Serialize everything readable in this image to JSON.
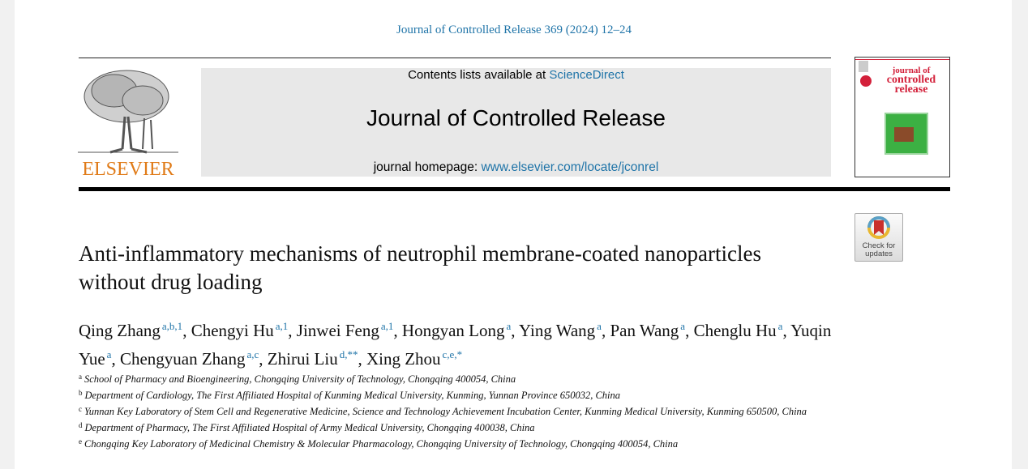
{
  "citation": "Journal of Controlled Release 369 (2024) 12–24",
  "publisher": "ELSEVIER",
  "banner": {
    "contents_prefix": "Contents lists available at ",
    "contents_link": "ScienceDirect",
    "journal": "Journal of Controlled Release",
    "homepage_prefix": "journal homepage: ",
    "homepage_link": "www.elsevier.com/locate/jconrel"
  },
  "cover": {
    "line1": "journal of",
    "line2": "controlled",
    "line3": "release"
  },
  "check_updates": {
    "line1": "Check for",
    "line2": "updates"
  },
  "title": "Anti-inflammatory mechanisms of neutrophil membrane-coated nanoparticles without drug loading",
  "authors": [
    {
      "name": "Qing Zhang",
      "sup": "a,b,1"
    },
    {
      "name": "Chengyi Hu",
      "sup": "a,1"
    },
    {
      "name": "Jinwei Feng",
      "sup": "a,1"
    },
    {
      "name": "Hongyan Long",
      "sup": "a"
    },
    {
      "name": "Ying Wang",
      "sup": "a"
    },
    {
      "name": "Pan Wang",
      "sup": "a"
    },
    {
      "name": "Chenglu Hu",
      "sup": "a"
    },
    {
      "name": "Yuqin Yue",
      "sup": "a"
    },
    {
      "name": "Chengyuan Zhang",
      "sup": "a,c"
    },
    {
      "name": "Zhirui Liu",
      "sup": "d,**"
    },
    {
      "name": "Xing Zhou",
      "sup": "c,e,*"
    }
  ],
  "affiliations": [
    {
      "key": "a",
      "text": "School of Pharmacy and Bioengineering, Chongqing University of Technology, Chongqing 400054, China"
    },
    {
      "key": "b",
      "text": "Department of Cardiology, The First Affiliated Hospital of Kunming Medical University, Kunming, Yunnan Province 650032, China"
    },
    {
      "key": "c",
      "text": "Yunnan Key Laboratory of Stem Cell and Regenerative Medicine, Science and Technology Achievement Incubation Center, Kunming Medical University, Kunming 650500, China"
    },
    {
      "key": "d",
      "text": "Department of Pharmacy, The First Affiliated Hospital of Army Medical University, Chongqing 400038, China"
    },
    {
      "key": "e",
      "text": "Chongqing Key Laboratory of Medicinal Chemistry & Molecular Pharmacology, Chongqing University of Technology, Chongqing 400054, China"
    }
  ]
}
